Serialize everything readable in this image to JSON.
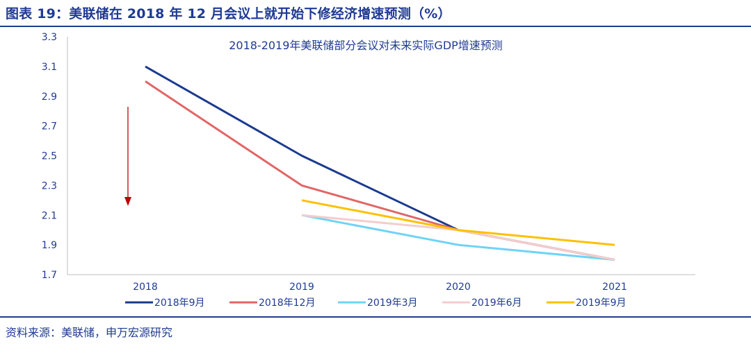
{
  "figure": {
    "title": "图表 19：美联储在 2018 年 12 月会议上就开始下修经济增速预测（%）",
    "source": "资料来源：美联储，申万宏源研究"
  },
  "colors": {
    "frame": "#1f3a93",
    "arrow": "#c00000"
  },
  "chart_data": {
    "type": "line",
    "title": "2018-2019年美联储部分会议对未来实际GDP增速预测",
    "xlabel": "",
    "ylabel": "",
    "categories": [
      "2018",
      "2019",
      "2020",
      "2021"
    ],
    "ylim": [
      1.7,
      3.3
    ],
    "yticks": [
      "3.3",
      "3.1",
      "2.9",
      "2.7",
      "2.5",
      "2.3",
      "2.1",
      "1.9",
      "1.7"
    ],
    "grid": false,
    "legend_position": "bottom",
    "series": [
      {
        "name": "2018年9月",
        "color": "#1a3a8f",
        "values": [
          3.1,
          2.5,
          2.0,
          1.8
        ]
      },
      {
        "name": "2018年12月",
        "color": "#e06666",
        "values": [
          3.0,
          2.3,
          2.0,
          1.8
        ]
      },
      {
        "name": "2019年3月",
        "color": "#6fd3f5",
        "values": [
          null,
          2.1,
          1.9,
          1.8
        ]
      },
      {
        "name": "2019年6月",
        "color": "#f4cccc",
        "values": [
          null,
          2.1,
          2.0,
          1.8
        ]
      },
      {
        "name": "2019年9月",
        "color": "#ffc000",
        "values": [
          null,
          2.2,
          2.0,
          1.9
        ]
      }
    ]
  }
}
